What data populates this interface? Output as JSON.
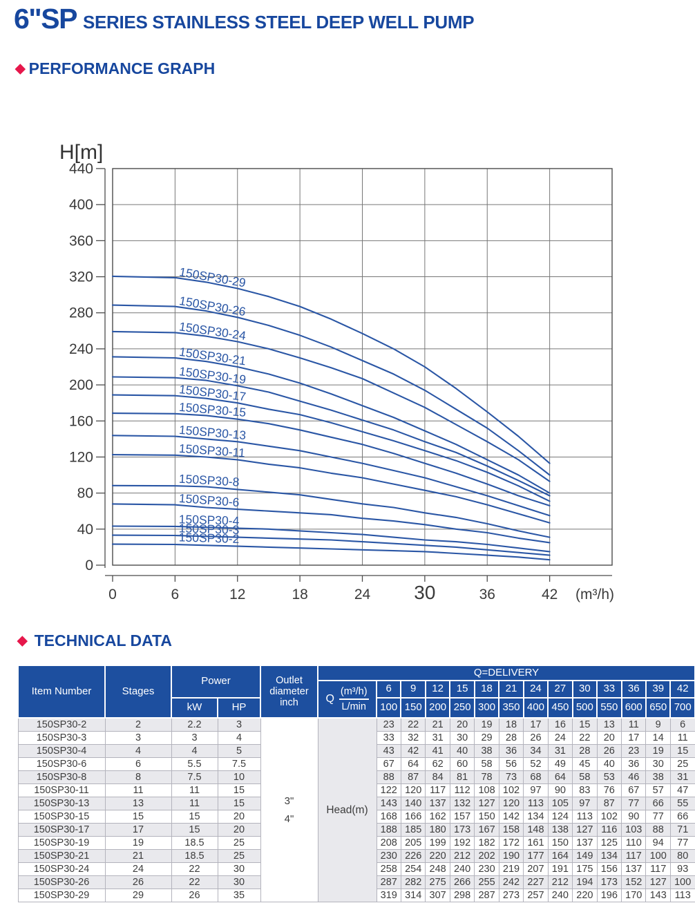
{
  "page": {
    "title_main": "6\"SP",
    "title_rest": "SERIES STAINLESS STEEL DEEP WELL PUMP",
    "section_performance": "PERFORMANCE GRAPH",
    "section_technical": "TECHNICAL DATA",
    "diamond_icon": "◆"
  },
  "colors": {
    "heading_blue": "#17479E",
    "table_header_blue": "#1D4F9F",
    "accent_red": "#E6174B",
    "curve_blue": "#2A56A5",
    "row_alt_gray": "#E9E9ED"
  },
  "chart_data": {
    "type": "line",
    "title": "",
    "ylabel": "H[m]",
    "xlabel": "",
    "x_unit_label": "(m³/h)",
    "xlim": [
      0,
      48
    ],
    "ylim": [
      0,
      440
    ],
    "grid": true,
    "legend_position": "labels-on-curves",
    "x_ticks": [
      0,
      6,
      12,
      18,
      24,
      30,
      36,
      42
    ],
    "emphasized_x_tick": 30,
    "y_ticks": [
      0,
      40,
      80,
      120,
      160,
      200,
      240,
      280,
      320,
      360,
      400,
      440
    ],
    "x": [
      6,
      9,
      12,
      15,
      18,
      21,
      24,
      27,
      30,
      33,
      36,
      39,
      42
    ],
    "series": [
      {
        "name": "150SP30-2",
        "values": [
          23,
          22,
          21,
          20,
          19,
          18,
          17,
          16,
          15,
          13,
          11,
          9,
          6
        ]
      },
      {
        "name": "150SP30-3",
        "values": [
          33,
          32,
          31,
          30,
          29,
          28,
          26,
          24,
          22,
          20,
          17,
          14,
          11
        ]
      },
      {
        "name": "150SP30-4",
        "values": [
          43,
          42,
          41,
          40,
          38,
          36,
          34,
          31,
          28,
          26,
          23,
          19,
          15
        ]
      },
      {
        "name": "150SP30-6",
        "values": [
          67,
          64,
          62,
          60,
          58,
          56,
          52,
          49,
          45,
          40,
          36,
          30,
          25
        ]
      },
      {
        "name": "150SP30-8",
        "values": [
          88,
          87,
          84,
          81,
          78,
          73,
          68,
          64,
          58,
          53,
          46,
          38,
          31
        ]
      },
      {
        "name": "150SP30-11",
        "values": [
          122,
          120,
          117,
          112,
          108,
          102,
          97,
          90,
          83,
          76,
          67,
          57,
          47
        ]
      },
      {
        "name": "150SP30-13",
        "values": [
          143,
          140,
          137,
          132,
          127,
          120,
          113,
          105,
          97,
          87,
          77,
          66,
          55
        ]
      },
      {
        "name": "150SP30-15",
        "values": [
          168,
          166,
          162,
          157,
          150,
          142,
          134,
          124,
          113,
          102,
          90,
          77,
          66
        ]
      },
      {
        "name": "150SP30-17",
        "values": [
          188,
          185,
          180,
          173,
          167,
          158,
          148,
          138,
          127,
          116,
          103,
          88,
          71
        ]
      },
      {
        "name": "150SP30-19",
        "values": [
          208,
          205,
          199,
          192,
          182,
          172,
          161,
          150,
          137,
          125,
          110,
          94,
          77
        ]
      },
      {
        "name": "150SP30-21",
        "values": [
          230,
          226,
          220,
          212,
          202,
          190,
          177,
          164,
          149,
          134,
          117,
          100,
          80
        ]
      },
      {
        "name": "150SP30-24",
        "values": [
          258,
          254,
          248,
          240,
          230,
          219,
          207,
          191,
          175,
          156,
          137,
          117,
          93
        ]
      },
      {
        "name": "150SP30-26",
        "values": [
          287,
          282,
          275,
          266,
          255,
          242,
          227,
          212,
          194,
          173,
          152,
          127,
          100
        ]
      },
      {
        "name": "150SP30-29",
        "values": [
          319,
          314,
          307,
          298,
          287,
          273,
          257,
          240,
          220,
          196,
          170,
          143,
          113
        ]
      }
    ]
  },
  "table": {
    "col_item": "Item Number",
    "col_stages": "Stages",
    "col_power": "Power",
    "col_kw": "kW",
    "col_hp": "HP",
    "col_outlet": "Outlet diameter inch",
    "delivery_header": "Q=DELIVERY",
    "q_label": "Q",
    "q_unit_top": "(m³/h)",
    "q_unit_bottom": "L/min",
    "q_m3h": [
      "6",
      "9",
      "12",
      "15",
      "18",
      "21",
      "24",
      "27",
      "30",
      "33",
      "36",
      "39",
      "42"
    ],
    "q_lmin": [
      "100",
      "150",
      "200",
      "250",
      "300",
      "350",
      "400",
      "450",
      "500",
      "550",
      "600",
      "650",
      "700"
    ],
    "outlet_values": [
      "3\"",
      "4\""
    ],
    "head_row_label": "Head(m)",
    "rows": [
      {
        "item": "150SP30-2",
        "stages": "2",
        "kw": "2.2",
        "hp": "3"
      },
      {
        "item": "150SP30-3",
        "stages": "3",
        "kw": "3",
        "hp": "4"
      },
      {
        "item": "150SP30-4",
        "stages": "4",
        "kw": "4",
        "hp": "5"
      },
      {
        "item": "150SP30-6",
        "stages": "6",
        "kw": "5.5",
        "hp": "7.5"
      },
      {
        "item": "150SP30-8",
        "stages": "8",
        "kw": "7.5",
        "hp": "10"
      },
      {
        "item": "150SP30-11",
        "stages": "11",
        "kw": "11",
        "hp": "15"
      },
      {
        "item": "150SP30-13",
        "stages": "13",
        "kw": "11",
        "hp": "15"
      },
      {
        "item": "150SP30-15",
        "stages": "15",
        "kw": "15",
        "hp": "20"
      },
      {
        "item": "150SP30-17",
        "stages": "17",
        "kw": "15",
        "hp": "20"
      },
      {
        "item": "150SP30-19",
        "stages": "19",
        "kw": "18.5",
        "hp": "25"
      },
      {
        "item": "150SP30-21",
        "stages": "21",
        "kw": "18.5",
        "hp": "25"
      },
      {
        "item": "150SP30-24",
        "stages": "24",
        "kw": "22",
        "hp": "30"
      },
      {
        "item": "150SP30-26",
        "stages": "26",
        "kw": "22",
        "hp": "30"
      },
      {
        "item": "150SP30-29",
        "stages": "29",
        "kw": "26",
        "hp": "35"
      }
    ]
  }
}
